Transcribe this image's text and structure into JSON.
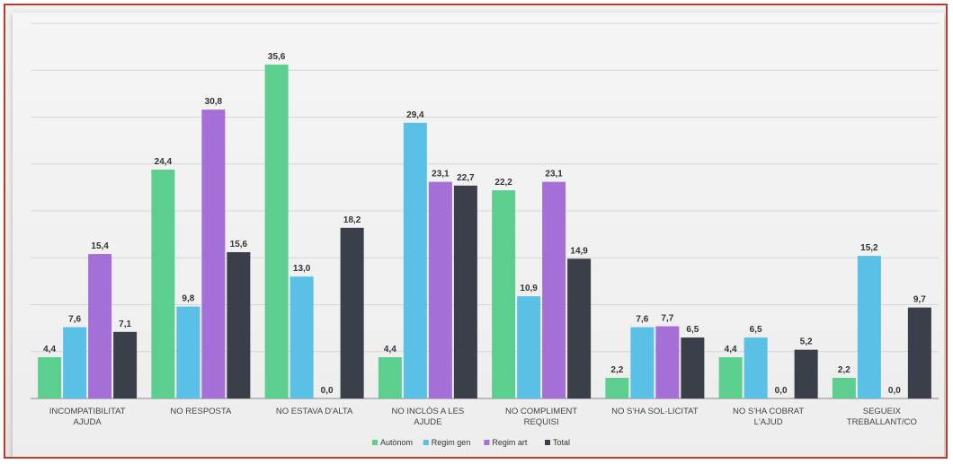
{
  "chart_data": {
    "type": "bar",
    "title": "",
    "xlabel": "",
    "ylabel": "",
    "ylim": [
      0,
      40
    ],
    "grid": true,
    "legend_position": "bottom",
    "categories": [
      [
        "INCOMPATIBILITAT",
        "AJUDA"
      ],
      [
        "NO RESPOSTA"
      ],
      [
        "NO ESTAVA D'ALTA"
      ],
      [
        "NO INCLÒS A LES",
        "AJUDE"
      ],
      [
        "NO COMPLIMENT",
        "REQUISI"
      ],
      [
        "NO S'HA SOL·LICITAT"
      ],
      [
        "NO S'HA COBRAT",
        "L'AJUD"
      ],
      [
        "SEGUEIX",
        "TREBALLANT/CO"
      ]
    ],
    "series": [
      {
        "name": "Autònom",
        "color": "#5ccf8e",
        "values": [
          4.4,
          24.4,
          35.6,
          4.4,
          22.2,
          2.2,
          4.4,
          2.2
        ],
        "labels": [
          "4,4",
          "24,4",
          "35,6",
          "4,4",
          "22,2",
          "2,2",
          "4,4",
          "2,2"
        ]
      },
      {
        "name": "Regim gen",
        "color": "#5bc0e6",
        "values": [
          7.6,
          9.8,
          13.0,
          29.4,
          10.9,
          7.6,
          6.5,
          15.2
        ],
        "labels": [
          "7,6",
          "9,8",
          "13,0",
          "29,4",
          "10,9",
          "7,6",
          "6,5",
          "15,2"
        ]
      },
      {
        "name": "Regim art",
        "color": "#a46fd6",
        "values": [
          15.4,
          30.8,
          0.0,
          23.1,
          23.1,
          7.7,
          0.0,
          0.0
        ],
        "labels": [
          "15,4",
          "30,8",
          "0,0",
          "23,1",
          "23,1",
          "7,7",
          "0,0",
          "0,0"
        ]
      },
      {
        "name": "Total",
        "color": "#3a3f4a",
        "values": [
          7.1,
          15.6,
          18.2,
          22.7,
          14.9,
          6.5,
          5.2,
          9.7
        ],
        "labels": [
          "7,1",
          "15,6",
          "18,2",
          "22,7",
          "14,9",
          "6,5",
          "5,2",
          "9,7"
        ]
      }
    ]
  }
}
